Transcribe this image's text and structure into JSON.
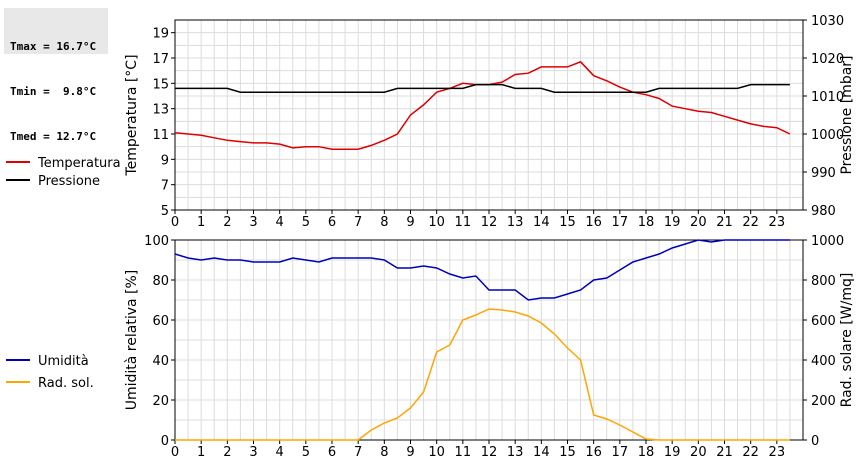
{
  "stats": {
    "lines": [
      "Tmax = 16.7°C",
      "Tmin =  9.8°C",
      "Tmed = 12.7°C"
    ]
  },
  "chart_data": [
    {
      "type": "line",
      "xlim": [
        0,
        24
      ],
      "x_ticks": [
        0,
        1,
        2,
        3,
        4,
        5,
        6,
        7,
        8,
        9,
        10,
        11,
        12,
        13,
        14,
        15,
        16,
        17,
        18,
        19,
        20,
        21,
        22,
        23
      ],
      "ylabel": "Temperatura [°C]",
      "ylim": [
        5,
        20
      ],
      "y_ticks": [
        5,
        7,
        9,
        11,
        13,
        15,
        17,
        19
      ],
      "y2label": "Pressione [mbar]",
      "y2lim": [
        980,
        1030
      ],
      "y2_ticks": [
        980,
        990,
        1000,
        1010,
        1020,
        1030
      ],
      "grid": true,
      "legend_placement": "left",
      "series": [
        {
          "name": "Temperatura",
          "axis": "left",
          "color": "#dd0000",
          "x": [
            0,
            0.5,
            1,
            1.5,
            2,
            2.5,
            3,
            3.5,
            4,
            4.5,
            5,
            5.5,
            6,
            6.5,
            7,
            7.5,
            8,
            8.5,
            9,
            9.5,
            10,
            10.5,
            11,
            11.5,
            12,
            12.5,
            13,
            13.5,
            14,
            14.5,
            15,
            15.5,
            16,
            16.5,
            17,
            17.5,
            18,
            18.5,
            19,
            19.5,
            20,
            20.5,
            21,
            21.5,
            22,
            22.5,
            23,
            23.5
          ],
          "values": [
            11.1,
            11.0,
            10.9,
            10.7,
            10.5,
            10.4,
            10.3,
            10.3,
            10.2,
            9.9,
            10.0,
            10.0,
            9.8,
            9.8,
            9.8,
            10.1,
            10.5,
            11.0,
            12.5,
            13.3,
            14.3,
            14.6,
            15.0,
            14.9,
            14.9,
            15.1,
            15.7,
            15.8,
            16.3,
            16.3,
            16.3,
            16.7,
            15.6,
            15.2,
            14.7,
            14.3,
            14.1,
            13.8,
            13.2,
            13.0,
            12.8,
            12.7,
            12.4,
            12.1,
            11.8,
            11.6,
            11.5,
            11.0
          ]
        },
        {
          "name": "Pressione",
          "axis": "right",
          "color": "#000000",
          "x": [
            0,
            0.5,
            1,
            1.5,
            2,
            2.5,
            3,
            3.5,
            4,
            4.5,
            5,
            5.5,
            6,
            6.5,
            7,
            7.5,
            8,
            8.5,
            9,
            9.5,
            10,
            10.5,
            11,
            11.5,
            12,
            12.5,
            13,
            13.5,
            14,
            14.5,
            15,
            15.5,
            16,
            16.5,
            17,
            17.5,
            18,
            18.5,
            19,
            19.5,
            20,
            20.5,
            21,
            21.5,
            22,
            22.5,
            23,
            23.5
          ],
          "values": [
            1012,
            1012,
            1012,
            1012,
            1012,
            1011,
            1011,
            1011,
            1011,
            1011,
            1011,
            1011,
            1011,
            1011,
            1011,
            1011,
            1011,
            1012,
            1012,
            1012,
            1012,
            1012,
            1012,
            1013,
            1013,
            1013,
            1012,
            1012,
            1012,
            1011,
            1011,
            1011,
            1011,
            1011,
            1011,
            1011,
            1011,
            1012,
            1012,
            1012,
            1012,
            1012,
            1012,
            1012,
            1013,
            1013,
            1013,
            1013
          ]
        }
      ]
    },
    {
      "type": "line",
      "xlim": [
        0,
        24
      ],
      "x_ticks": [
        0,
        1,
        2,
        3,
        4,
        5,
        6,
        7,
        8,
        9,
        10,
        11,
        12,
        13,
        14,
        15,
        16,
        17,
        18,
        19,
        20,
        21,
        22,
        23
      ],
      "ylabel": "Umidità relativa [%]",
      "ylim": [
        0,
        100
      ],
      "y_ticks": [
        0,
        20,
        40,
        60,
        80,
        100
      ],
      "y2label": "Rad. solare [W/mq]",
      "y2lim": [
        0,
        1000
      ],
      "y2_ticks": [
        0,
        200,
        400,
        600,
        800,
        1000
      ],
      "grid": true,
      "legend_placement": "left",
      "series": [
        {
          "name": "Umidità",
          "axis": "left",
          "color": "#0000bb",
          "x": [
            0,
            0.5,
            1,
            1.5,
            2,
            2.5,
            3,
            3.5,
            4,
            4.5,
            5,
            5.5,
            6,
            6.5,
            7,
            7.5,
            8,
            8.5,
            9,
            9.5,
            10,
            10.5,
            11,
            11.5,
            12,
            12.5,
            13,
            13.5,
            14,
            14.5,
            15,
            15.5,
            16,
            16.5,
            17,
            17.5,
            18,
            18.5,
            19,
            19.5,
            20,
            20.5,
            21,
            21.5,
            22,
            22.5,
            23,
            23.5
          ],
          "values": [
            93,
            91,
            90,
            91,
            90,
            90,
            89,
            89,
            89,
            91,
            90,
            89,
            91,
            91,
            91,
            91,
            90,
            86,
            86,
            87,
            86,
            83,
            81,
            82,
            75,
            75,
            75,
            70,
            71,
            71,
            73,
            75,
            80,
            81,
            85,
            89,
            91,
            93,
            96,
            98,
            100,
            99,
            100,
            100,
            100,
            100,
            100,
            100
          ]
        },
        {
          "name": "Rad. sol.",
          "axis": "right",
          "color": "#ffa500",
          "x": [
            0,
            0.5,
            1,
            1.5,
            2,
            2.5,
            3,
            3.5,
            4,
            4.5,
            5,
            5.5,
            6,
            6.5,
            7,
            7.5,
            8,
            8.5,
            9,
            9.5,
            10,
            10.5,
            11,
            11.5,
            12,
            12.5,
            13,
            13.5,
            14,
            14.5,
            15,
            15.5,
            16,
            16.5,
            17,
            17.5,
            18,
            18.5,
            19,
            19.5,
            20,
            20.5,
            21,
            21.5,
            22,
            22.5,
            23,
            23.5
          ],
          "values": [
            0,
            0,
            0,
            0,
            0,
            0,
            0,
            0,
            0,
            0,
            0,
            0,
            0,
            0,
            0,
            50,
            85,
            110,
            160,
            240,
            440,
            475,
            600,
            625,
            655,
            650,
            640,
            620,
            585,
            530,
            460,
            400,
            125,
            105,
            75,
            40,
            5,
            0,
            0,
            0,
            0,
            0,
            0,
            0,
            0,
            0,
            0,
            0
          ]
        }
      ]
    }
  ]
}
